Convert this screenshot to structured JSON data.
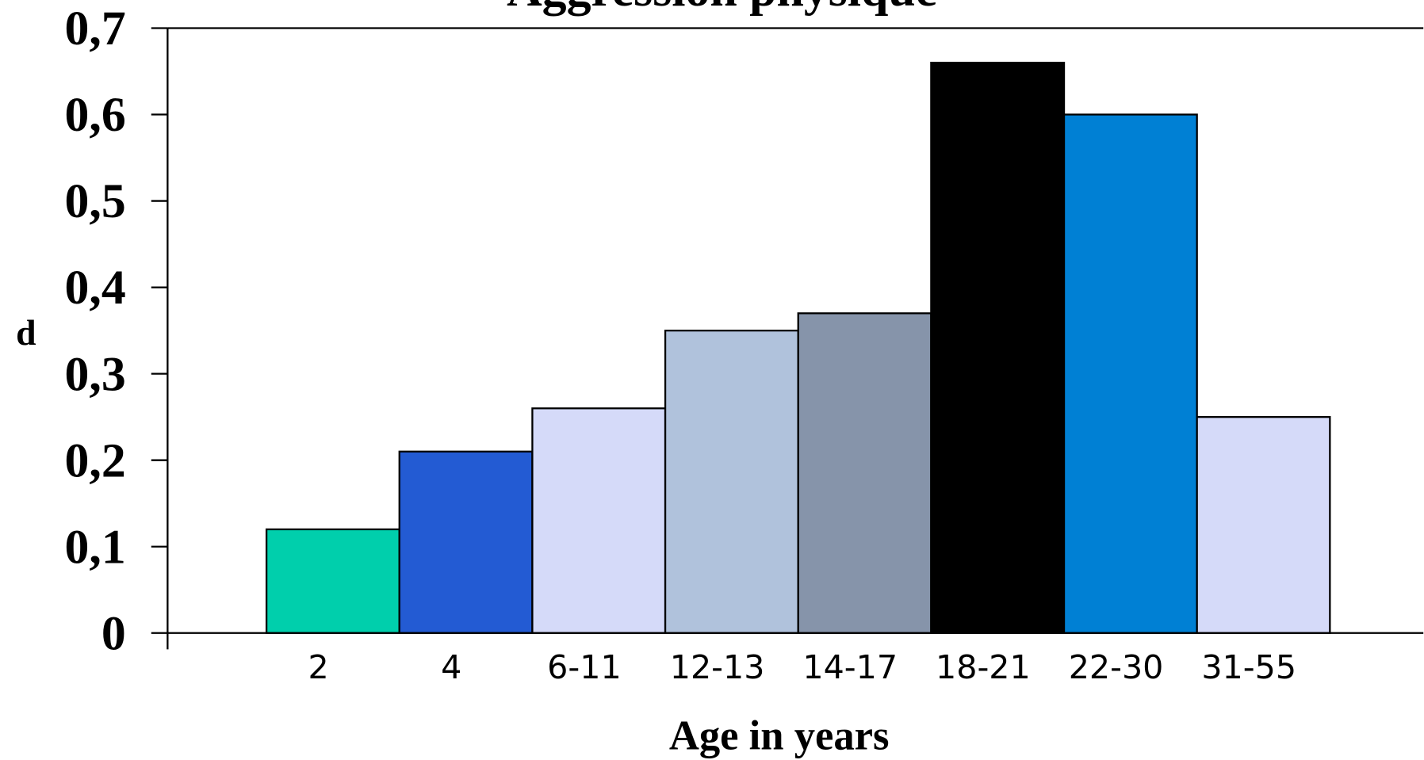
{
  "chart_data": {
    "type": "bar",
    "title": "Aggression physique",
    "x_label": "Age in years",
    "y_label": "d",
    "categories": [
      "2",
      "4",
      "6-11",
      "12-13",
      "14-17",
      "18-21",
      "22-30",
      "31-55"
    ],
    "values": [
      0.12,
      0.21,
      0.26,
      0.35,
      0.37,
      0.66,
      0.6,
      0.25
    ],
    "colors": [
      "#00cfac",
      "#235bd3",
      "#d5daf9",
      "#b0c2dc",
      "#8694aa",
      "#000000",
      "#0080d4",
      "#d5daf9"
    ],
    "ylim": [
      0,
      0.7
    ],
    "yticks": [
      0,
      {
        "value": 0.1,
        "label": "0,1"
      },
      {
        "value": 0.2,
        "label": "0,2"
      },
      {
        "value": 0.3,
        "label": "0,3"
      },
      {
        "value": 0.4,
        "label": "0,4"
      },
      {
        "value": 0.5,
        "label": "0,5"
      },
      {
        "value": 0.6,
        "label": "0,6"
      },
      {
        "value": 0.7,
        "label": "0,7"
      }
    ],
    "grid": false
  }
}
